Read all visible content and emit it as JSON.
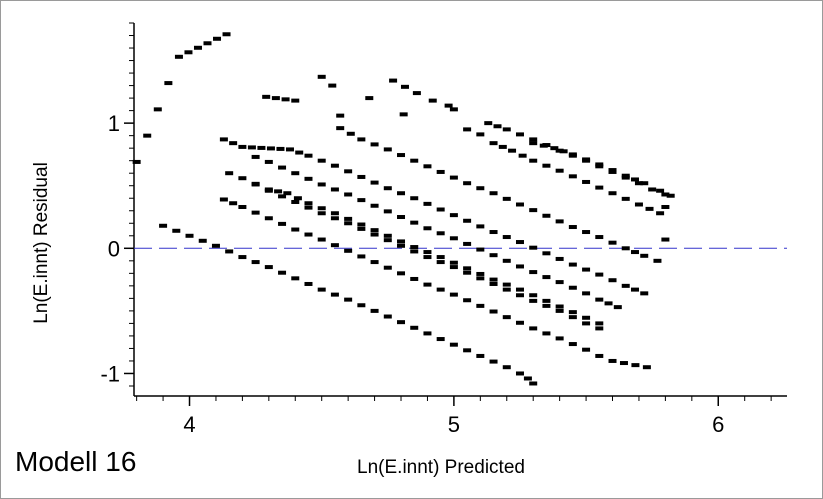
{
  "caption": "Modell 16",
  "chart_data": {
    "type": "scatter",
    "title": "",
    "xlabel": "Ln(E.innt) Predicted",
    "ylabel": "Ln(E.innt) Residual",
    "xlim": [
      3.79,
      6.26
    ],
    "ylim": [
      -1.18,
      1.8
    ],
    "xticks": [
      4,
      5,
      6
    ],
    "yticks": [
      -1,
      0,
      1
    ],
    "reference_line": {
      "y": 0,
      "style": "dashed",
      "color": "#3333cc"
    },
    "marker_color": "#000000",
    "series": [
      {
        "points": [
          [
            3.8,
            0.69
          ],
          [
            3.96,
            1.53
          ],
          [
            4.14,
            1.71
          ],
          [
            4.5,
            1.37
          ],
          [
            4.77,
            1.34
          ],
          [
            4.86,
            1.24
          ],
          [
            4.54,
            1.3
          ],
          [
            4.29,
            1.21
          ],
          [
            4.4,
            1.18
          ],
          [
            4.68,
            1.2
          ],
          [
            4.92,
            1.18
          ],
          [
            4.98,
            1.14
          ],
          [
            5.0,
            1.11
          ],
          [
            4.57,
            1.06
          ],
          [
            4.81,
            1.07
          ]
        ]
      },
      {
        "points": [
          [
            3.9,
            0.18
          ],
          [
            3.95,
            0.14
          ],
          [
            4.0,
            0.1
          ],
          [
            4.1,
            0.02
          ],
          [
            4.2,
            -0.07
          ],
          [
            4.3,
            -0.15
          ],
          [
            4.4,
            -0.24
          ],
          [
            4.5,
            -0.33
          ],
          [
            4.6,
            -0.41
          ],
          [
            4.7,
            -0.5
          ],
          [
            4.8,
            -0.59
          ],
          [
            4.9,
            -0.68
          ],
          [
            5.0,
            -0.77
          ],
          [
            5.1,
            -0.86
          ],
          [
            5.2,
            -0.95
          ],
          [
            5.25,
            -1.0
          ],
          [
            5.28,
            -1.04
          ],
          [
            5.3,
            -1.08
          ]
        ]
      },
      {
        "points": [
          [
            4.13,
            0.39
          ],
          [
            4.2,
            0.33
          ],
          [
            4.3,
            0.24
          ],
          [
            4.4,
            0.15
          ],
          [
            4.5,
            0.07
          ],
          [
            4.6,
            -0.02
          ],
          [
            4.7,
            -0.11
          ],
          [
            4.8,
            -0.2
          ],
          [
            4.9,
            -0.29
          ],
          [
            5.0,
            -0.37
          ],
          [
            5.1,
            -0.46
          ],
          [
            5.2,
            -0.55
          ],
          [
            5.3,
            -0.64
          ],
          [
            5.4,
            -0.72
          ],
          [
            5.5,
            -0.81
          ],
          [
            5.55,
            -0.86
          ],
          [
            5.6,
            -0.9
          ],
          [
            5.73,
            -0.95
          ]
        ]
      },
      {
        "points": [
          [
            4.25,
            0.51
          ],
          [
            4.3,
            0.46
          ],
          [
            4.4,
            0.37
          ],
          [
            4.5,
            0.28
          ],
          [
            4.6,
            0.2
          ],
          [
            4.7,
            0.11
          ],
          [
            4.8,
            0.02
          ],
          [
            4.9,
            -0.07
          ],
          [
            5.0,
            -0.15
          ],
          [
            5.1,
            -0.24
          ],
          [
            5.2,
            -0.33
          ],
          [
            5.3,
            -0.42
          ],
          [
            5.4,
            -0.5
          ],
          [
            5.45,
            -0.55
          ],
          [
            5.5,
            -0.6
          ],
          [
            5.55,
            -0.64
          ]
        ]
      },
      {
        "points": [
          [
            4.15,
            0.6
          ],
          [
            4.2,
            0.56
          ],
          [
            4.3,
            0.47
          ],
          [
            4.37,
            0.44
          ],
          [
            4.45,
            0.36
          ],
          [
            4.55,
            0.28
          ],
          [
            4.65,
            0.19
          ],
          [
            4.75,
            0.1
          ],
          [
            4.85,
            0.01
          ],
          [
            4.95,
            -0.07
          ],
          [
            5.05,
            -0.16
          ],
          [
            5.15,
            -0.25
          ],
          [
            5.25,
            -0.33
          ],
          [
            5.35,
            -0.42
          ],
          [
            5.45,
            -0.51
          ],
          [
            5.55,
            -0.6
          ]
        ]
      },
      {
        "points": [
          [
            4.25,
            0.73
          ],
          [
            4.3,
            0.69
          ],
          [
            4.4,
            0.6
          ],
          [
            4.5,
            0.51
          ],
          [
            4.6,
            0.43
          ],
          [
            4.7,
            0.34
          ],
          [
            4.8,
            0.25
          ],
          [
            4.9,
            0.16
          ],
          [
            5.0,
            0.08
          ],
          [
            5.1,
            -0.01
          ],
          [
            5.2,
            -0.1
          ],
          [
            5.3,
            -0.19
          ],
          [
            5.4,
            -0.27
          ],
          [
            5.5,
            -0.36
          ],
          [
            5.55,
            -0.41
          ],
          [
            5.62,
            -0.47
          ]
        ]
      },
      {
        "points": [
          [
            4.13,
            0.87
          ],
          [
            4.2,
            0.81
          ],
          [
            4.38,
            0.79
          ],
          [
            4.45,
            0.74
          ],
          [
            4.55,
            0.66
          ],
          [
            4.65,
            0.57
          ],
          [
            4.75,
            0.48
          ],
          [
            4.85,
            0.4
          ],
          [
            4.95,
            0.31
          ],
          [
            5.05,
            0.22
          ],
          [
            5.15,
            0.13
          ],
          [
            5.25,
            0.05
          ],
          [
            5.35,
            -0.04
          ],
          [
            5.45,
            -0.13
          ],
          [
            5.55,
            -0.21
          ],
          [
            5.65,
            -0.3
          ],
          [
            5.72,
            -0.36
          ]
        ]
      },
      {
        "points": [
          [
            4.57,
            0.96
          ],
          [
            4.65,
            0.87
          ],
          [
            4.75,
            0.79
          ],
          [
            4.85,
            0.7
          ],
          [
            4.95,
            0.61
          ],
          [
            5.05,
            0.52
          ],
          [
            5.15,
            0.44
          ],
          [
            5.25,
            0.35
          ],
          [
            5.35,
            0.26
          ],
          [
            5.45,
            0.17
          ],
          [
            5.55,
            0.09
          ],
          [
            5.65,
            0.0
          ],
          [
            5.72,
            -0.06
          ],
          [
            5.77,
            -0.1
          ]
        ]
      },
      {
        "points": [
          [
            5.05,
            0.95
          ],
          [
            5.1,
            0.91
          ],
          [
            5.15,
            0.84
          ],
          [
            5.22,
            0.78
          ],
          [
            5.3,
            0.7
          ],
          [
            5.4,
            0.62
          ],
          [
            5.5,
            0.53
          ],
          [
            5.6,
            0.44
          ],
          [
            5.7,
            0.35
          ],
          [
            5.78,
            0.28
          ],
          [
            5.8,
            0.07
          ]
        ]
      },
      {
        "points": [
          [
            5.13,
            1.0
          ],
          [
            5.2,
            0.95
          ],
          [
            5.3,
            0.87
          ],
          [
            5.4,
            0.78
          ],
          [
            5.5,
            0.7
          ],
          [
            5.6,
            0.61
          ],
          [
            5.7,
            0.52
          ],
          [
            5.75,
            0.47
          ],
          [
            5.8,
            0.43
          ]
        ]
      },
      {
        "points": [
          [
            5.3,
            0.84
          ],
          [
            5.38,
            0.8
          ],
          [
            5.45,
            0.75
          ],
          [
            5.55,
            0.67
          ],
          [
            5.65,
            0.58
          ],
          [
            5.72,
            0.52
          ],
          [
            5.78,
            0.46
          ],
          [
            5.82,
            0.42
          ],
          [
            5.8,
            0.33
          ]
        ]
      }
    ]
  }
}
